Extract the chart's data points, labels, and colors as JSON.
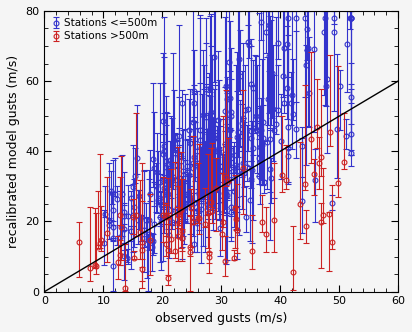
{
  "title": "",
  "xlabel": "observed gusts (m/s)",
  "ylabel": "recalibrated model gusts (m/s)",
  "xlim": [
    0,
    60
  ],
  "ylim": [
    0,
    80
  ],
  "xticks": [
    0,
    10,
    20,
    30,
    40,
    50,
    60
  ],
  "yticks": [
    0,
    20,
    40,
    60,
    80
  ],
  "ref_line_x": [
    0,
    60
  ],
  "ref_line_y": [
    0,
    60
  ],
  "blue_color": "#3333CC",
  "red_color": "#CC2222",
  "legend_labels": [
    "Stations <=500m",
    "Stations >500m"
  ],
  "marker_blue": "o",
  "marker_red": "o",
  "markersize": 3.5,
  "elinewidth": 0.8,
  "capsize": 2,
  "background": "#F5F5F5",
  "seed": 7,
  "n_blue": 300,
  "n_red": 80
}
